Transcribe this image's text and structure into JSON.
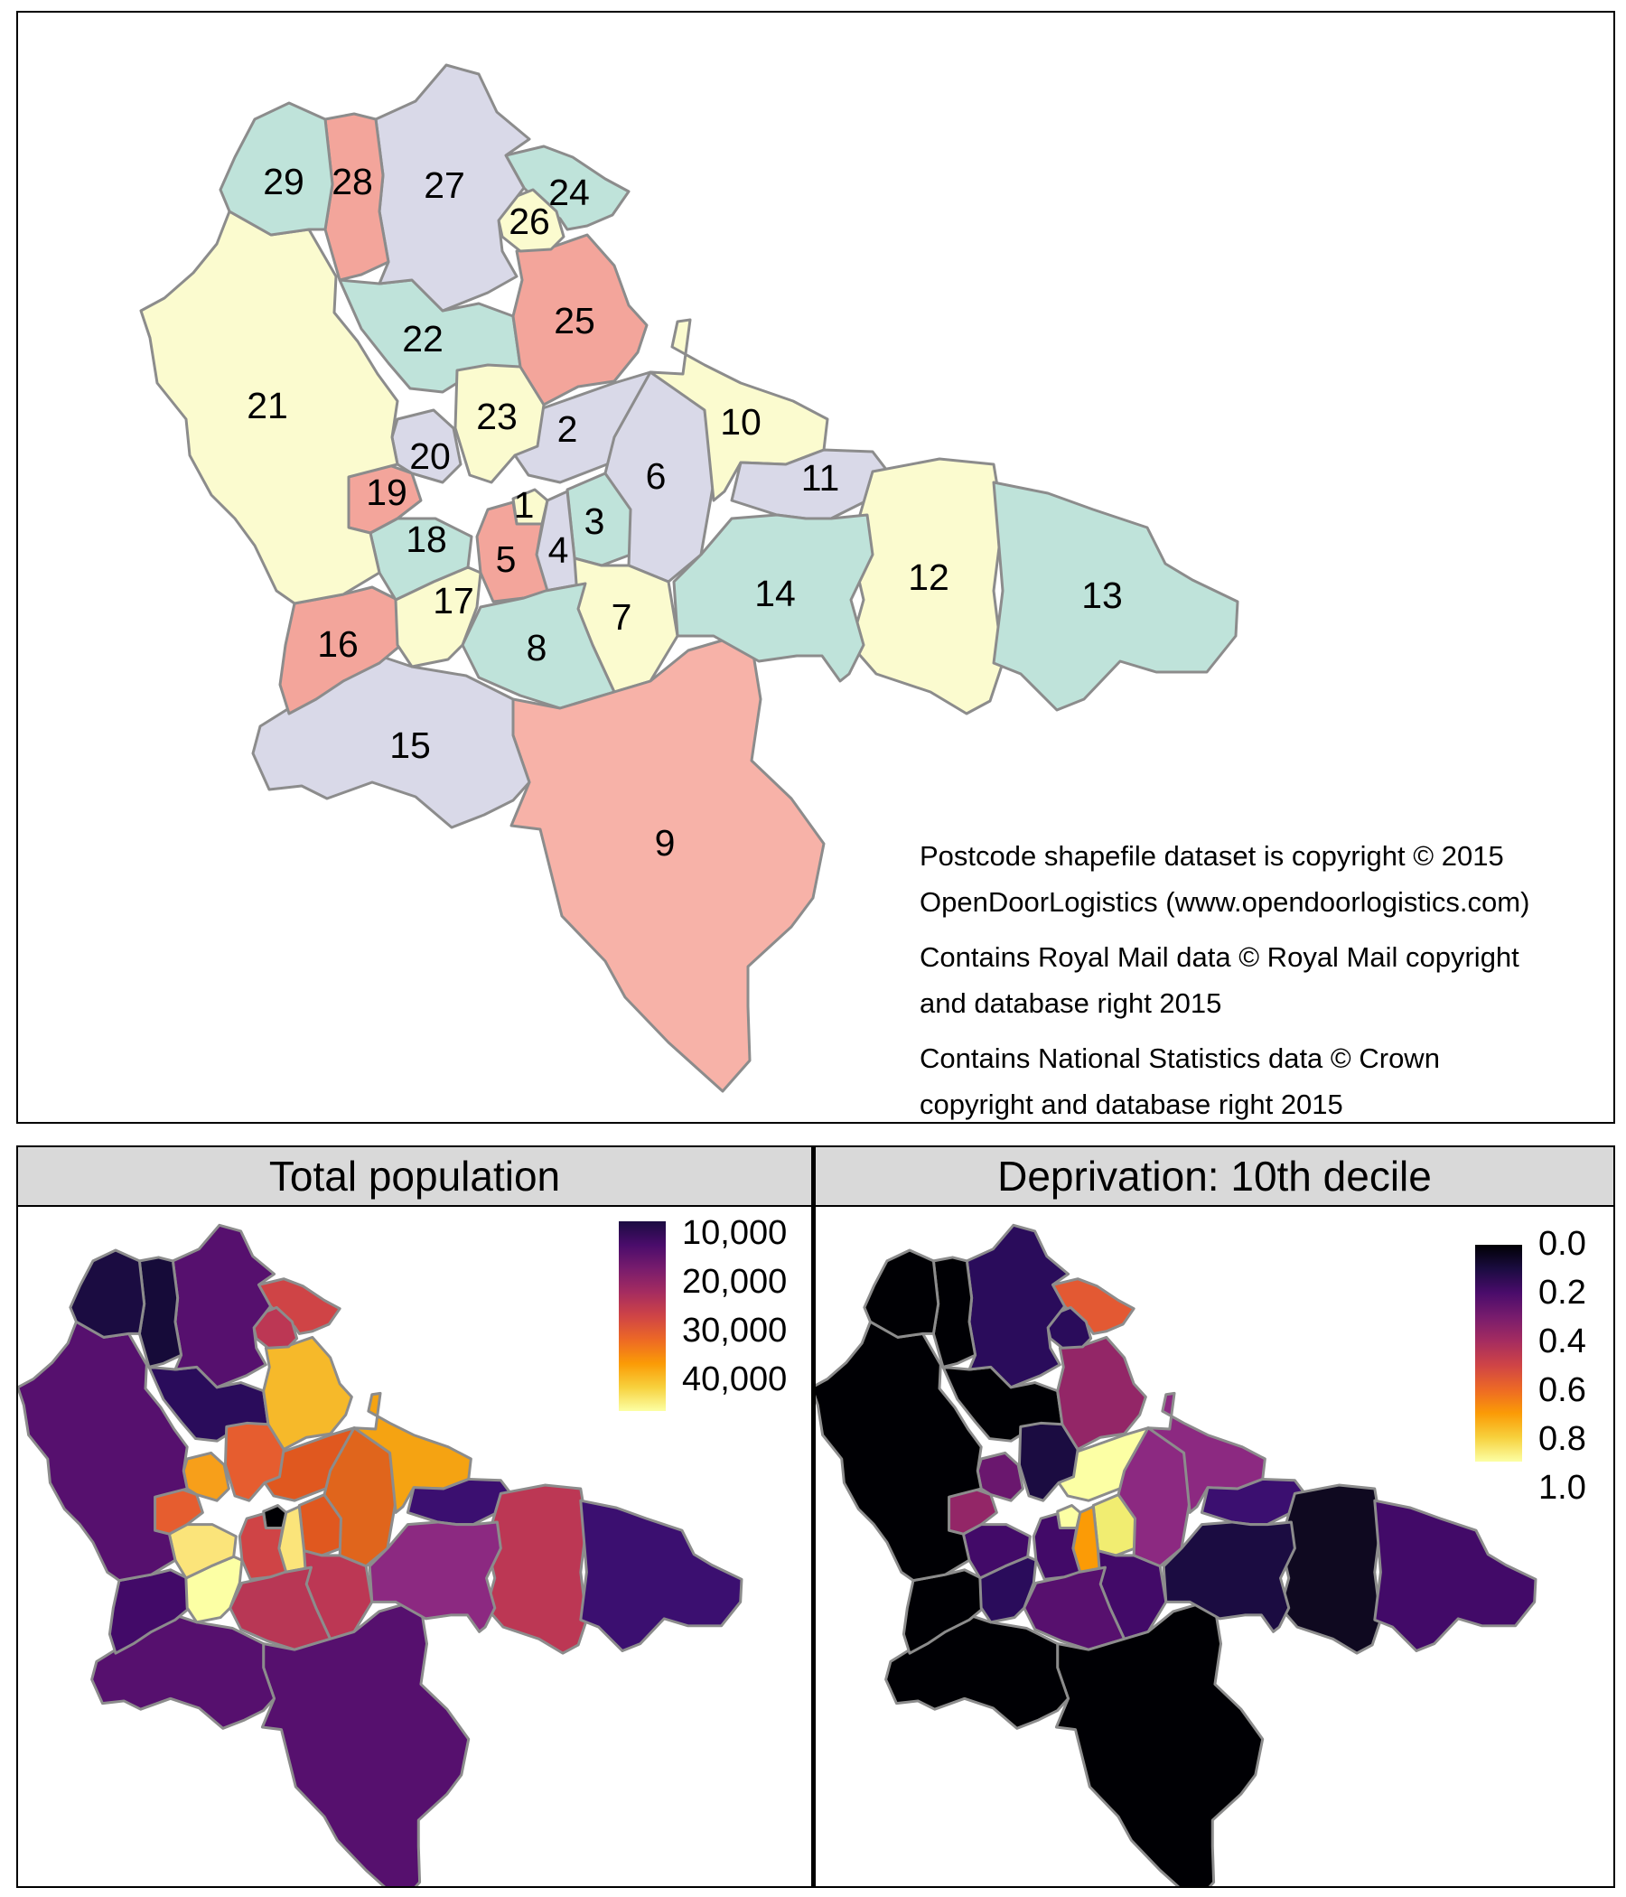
{
  "map": {
    "areas": [
      {
        "id": "1",
        "color": "#fbfbcf"
      },
      {
        "id": "2",
        "color": "#d9d9e8"
      },
      {
        "id": "3",
        "color": "#bfe3da"
      },
      {
        "id": "4",
        "color": "#d9d9e8"
      },
      {
        "id": "5",
        "color": "#f3a59b"
      },
      {
        "id": "6",
        "color": "#d9d9e8"
      },
      {
        "id": "7",
        "color": "#fbfbcf"
      },
      {
        "id": "8",
        "color": "#bfe3da"
      },
      {
        "id": "9",
        "color": "#f7b2a8"
      },
      {
        "id": "10",
        "color": "#fbfbcf"
      },
      {
        "id": "11",
        "color": "#d9d9e8"
      },
      {
        "id": "12",
        "color": "#fbfbcf"
      },
      {
        "id": "13",
        "color": "#bfe3da"
      },
      {
        "id": "14",
        "color": "#bfe3da"
      },
      {
        "id": "15",
        "color": "#d9d9e8"
      },
      {
        "id": "16",
        "color": "#f3a59b"
      },
      {
        "id": "17",
        "color": "#fbfbcf"
      },
      {
        "id": "18",
        "color": "#bfe3da"
      },
      {
        "id": "19",
        "color": "#f3a59b"
      },
      {
        "id": "20",
        "color": "#d9d9e8"
      },
      {
        "id": "21",
        "color": "#fbfbcf"
      },
      {
        "id": "22",
        "color": "#bfe3da"
      },
      {
        "id": "23",
        "color": "#fbfbcf"
      },
      {
        "id": "24",
        "color": "#bfe3da"
      },
      {
        "id": "25",
        "color": "#f3a59b"
      },
      {
        "id": "26",
        "color": "#fbfbcf"
      },
      {
        "id": "27",
        "color": "#d9d9e8"
      },
      {
        "id": "28",
        "color": "#f3a59b"
      },
      {
        "id": "29",
        "color": "#bfe3da"
      }
    ],
    "attribution": [
      "Postcode shapefile dataset is copyright © 2015",
      "OpenDoorLogistics (www.opendoorlogistics.com)",
      "Contains Royal Mail data © Royal Mail copyright",
      "and database right 2015",
      "Contains National Statistics data © Crown",
      "copyright and database right 2015"
    ]
  },
  "panels": {
    "population": {
      "title": "Total population",
      "legend_ticks": [
        "10,000",
        "20,000",
        "30,000",
        "40,000"
      ],
      "fills": {
        "1": "#000004",
        "2": "#e0581f",
        "3": "#e0581f",
        "4": "#fbe47a",
        "5": "#cf4446",
        "6": "#e0651c",
        "7": "#bc3754",
        "8": "#b83755",
        "9": "#56106e",
        "10": "#f5a312",
        "11": "#3b0f70",
        "12": "#bc3754",
        "13": "#3b0f70",
        "14": "#8c2981",
        "15": "#56106e",
        "16": "#420a68",
        "17": "#fcffa4",
        "18": "#fbe47a",
        "19": "#e65d2f",
        "20": "#f79f1a",
        "21": "#56106e",
        "22": "#2a0c5b",
        "23": "#e65d2f",
        "24": "#cf4446",
        "25": "#f6b92a",
        "26": "#bc3754",
        "27": "#56106e",
        "28": "#160b39",
        "29": "#1b0c41"
      }
    },
    "deprivation": {
      "title": "Deprivation: 10th decile",
      "legend_ticks": [
        "0.0",
        "0.2",
        "0.4",
        "0.6",
        "0.8",
        "1.0"
      ],
      "fills": {
        "1": "#fcffa4",
        "2": "#fcffa4",
        "3": "#f1ed71",
        "4": "#fb9b06",
        "5": "#420a68",
        "6": "#8c2981",
        "7": "#420a68",
        "8": "#57106e",
        "9": "#000004",
        "10": "#8c2981",
        "11": "#3b0f70",
        "12": "#0f0920",
        "13": "#420a68",
        "14": "#1b0c41",
        "15": "#000004",
        "16": "#000004",
        "17": "#2a0c5b",
        "18": "#420a68",
        "19": "#932667",
        "20": "#6a176e",
        "21": "#000004",
        "22": "#000004",
        "23": "#1b0c41",
        "24": "#e35933",
        "25": "#932667",
        "26": "#2a0c5b",
        "27": "#2a0c5b",
        "28": "#000004",
        "29": "#000004"
      }
    }
  },
  "scales": {
    "inferno": [
      "#000004",
      "#1b0c41",
      "#4a0c6b",
      "#781c6d",
      "#a52c60",
      "#cf4446",
      "#ed6925",
      "#fb9b06",
      "#f7d13d",
      "#fcffa4"
    ],
    "population_reversed": true
  }
}
